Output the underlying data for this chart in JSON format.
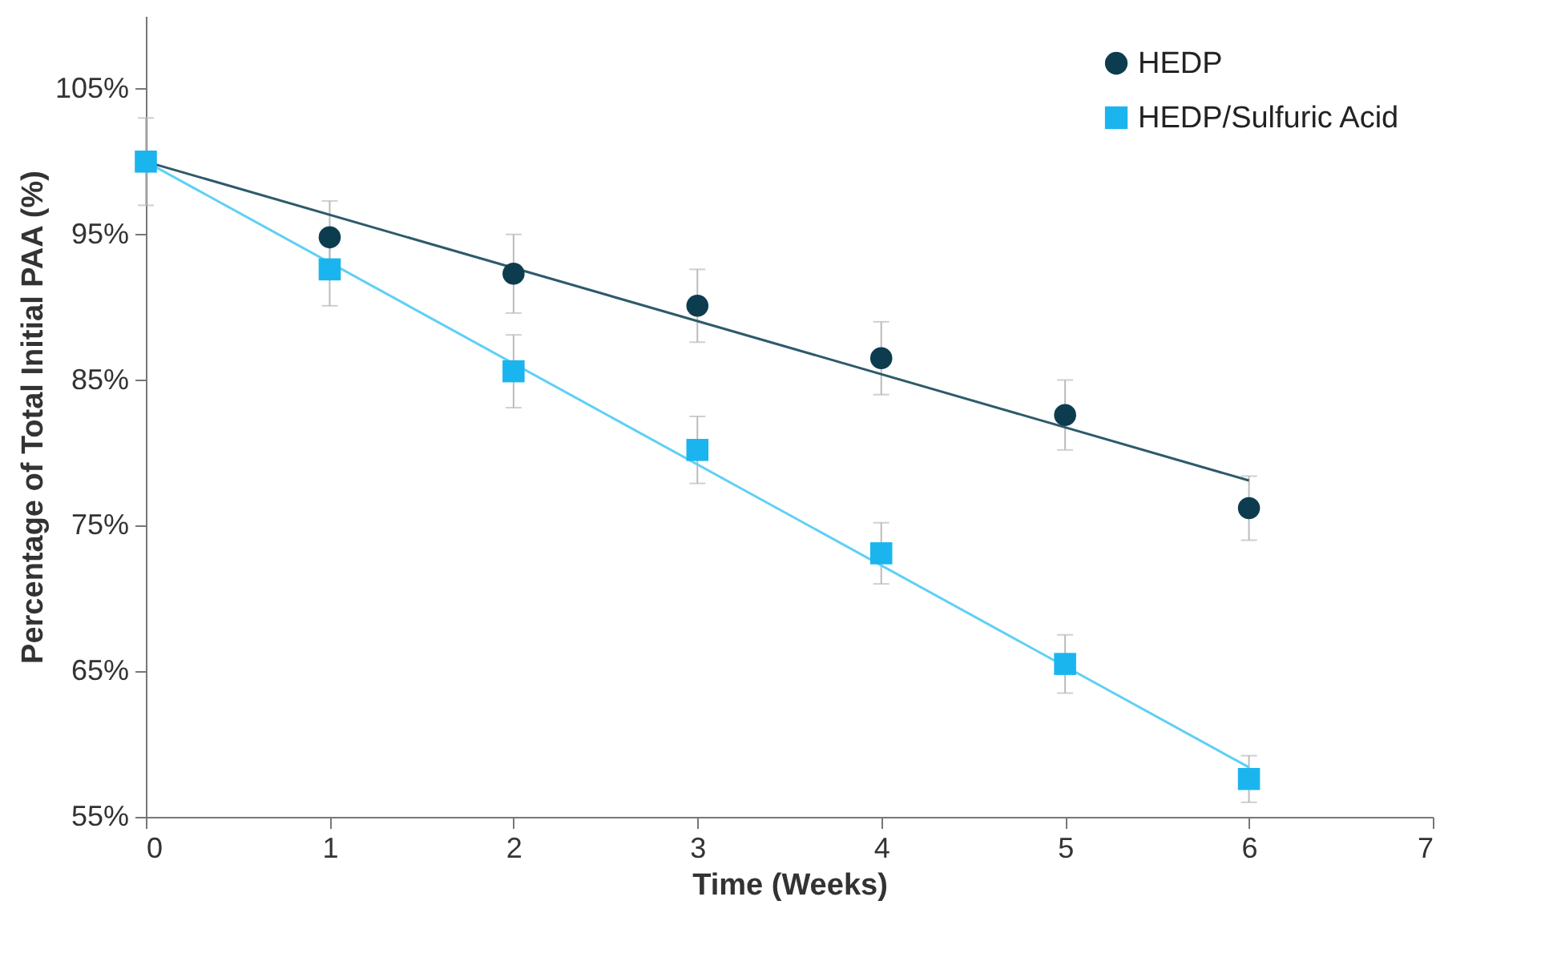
{
  "chart_data": {
    "type": "scatter",
    "xlabel": "Time (Weeks)",
    "ylabel": "Percentage of Total Initial PAA (%)",
    "xlim": [
      0,
      7
    ],
    "xticks": [
      0,
      1,
      2,
      3,
      4,
      5,
      6,
      7
    ],
    "ylim": [
      55,
      110
    ],
    "yticks": [
      {
        "value": 55,
        "label": "55%"
      },
      {
        "value": 65,
        "label": "65%"
      },
      {
        "value": 75,
        "label": "75%"
      },
      {
        "value": 85,
        "label": "85%"
      },
      {
        "value": 95,
        "label": "95%"
      },
      {
        "value": 105,
        "label": "105%"
      }
    ],
    "grid": false,
    "legend": "top right",
    "series": [
      {
        "name": "HEDP",
        "marker": "circle",
        "color": "#0d3c4f",
        "x": [
          1,
          2,
          3,
          4,
          5,
          6
        ],
        "values": [
          94.8,
          92.3,
          90.1,
          86.5,
          82.6,
          76.2
        ],
        "errors": [
          2.5,
          2.7,
          2.5,
          2.5,
          2.4,
          2.2
        ]
      },
      {
        "name": "HEDP/Sulfuric Acid",
        "marker": "square",
        "color": "#1ab5ef",
        "x": [
          0,
          1,
          2,
          3,
          4,
          5,
          6
        ],
        "values": [
          100,
          92.6,
          85.6,
          80.2,
          73.1,
          65.5,
          57.6
        ],
        "errors": [
          3,
          2.5,
          2.5,
          2.3,
          2.1,
          2.0,
          1.6
        ]
      },
      {
        "type": "line",
        "color": "#2e5a6b",
        "x": [
          0,
          6
        ],
        "values": [
          100,
          78.1
        ]
      },
      {
        "type": "line",
        "color": "#5fd0f5",
        "x": [
          0,
          6
        ],
        "values": [
          100,
          58.4
        ]
      }
    ]
  }
}
